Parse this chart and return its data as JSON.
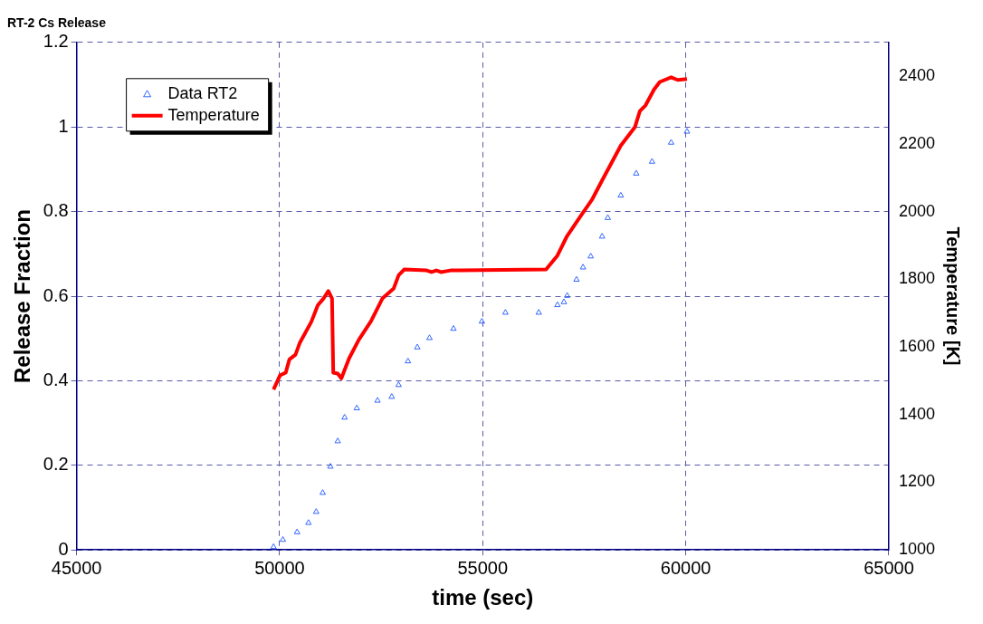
{
  "chart_data": {
    "type": "scatter",
    "title": "RT-2 Cs Release",
    "xlabel": "time (sec)",
    "ylabel": "Release Fraction",
    "y2label": "Temperature [K]",
    "xlim": [
      45000,
      65000
    ],
    "xticks": [
      45000,
      50000,
      55000,
      60000,
      65000
    ],
    "ylim": [
      0,
      1.2
    ],
    "yticks": [
      0,
      0.2,
      0.4,
      0.6,
      0.8,
      1,
      1.2
    ],
    "y2lim": [
      1000,
      2500
    ],
    "y2ticks": [
      1000,
      1200,
      1400,
      1600,
      1800,
      2000,
      2200,
      2400
    ],
    "grid": true,
    "legend": "top left",
    "series": [
      {
        "name": "Data RT2",
        "type": "scatter",
        "marker": "triangle",
        "color": "#3366ff",
        "x": [
          49850,
          50080,
          50430,
          50710,
          50900,
          51060,
          51250,
          51430,
          51600,
          51900,
          52410,
          52760,
          52930,
          53160,
          53390,
          53690,
          54280,
          54980,
          55560,
          56380,
          56840,
          57000,
          57080,
          57310,
          57470,
          57660,
          57940,
          58080,
          58400,
          58780,
          59170,
          59640,
          60030
        ],
        "values": [
          0.007,
          0.024,
          0.042,
          0.064,
          0.09,
          0.135,
          0.197,
          0.257,
          0.313,
          0.335,
          0.353,
          0.362,
          0.39,
          0.446,
          0.479,
          0.501,
          0.523,
          0.54,
          0.561,
          0.561,
          0.579,
          0.586,
          0.601,
          0.639,
          0.668,
          0.694,
          0.741,
          0.785,
          0.838,
          0.89,
          0.918,
          0.963,
          0.989
        ]
      },
      {
        "name": "Temperature",
        "type": "line",
        "axis": "y2",
        "marker": "none",
        "line_style": "solid",
        "color": "#ff0000",
        "x": [
          49850,
          50010,
          50150,
          50240,
          50390,
          50500,
          50780,
          50940,
          51080,
          51200,
          51290,
          51320,
          51430,
          51520,
          51710,
          51950,
          52250,
          52530,
          52810,
          52930,
          53070,
          53620,
          53740,
          53860,
          53970,
          54210,
          56560,
          56840,
          57070,
          57380,
          57700,
          57940,
          58400,
          58750,
          58870,
          59010,
          59220,
          59360,
          59640,
          59800,
          60030
        ],
        "values": [
          1474,
          1516,
          1524,
          1563,
          1577,
          1613,
          1674,
          1723,
          1743,
          1765,
          1743,
          1524,
          1521,
          1507,
          1566,
          1621,
          1676,
          1743,
          1773,
          1812,
          1829,
          1826,
          1821,
          1826,
          1821,
          1826,
          1829,
          1870,
          1926,
          1981,
          2037,
          2092,
          2195,
          2250,
          2297,
          2314,
          2361,
          2383,
          2397,
          2389,
          2392
        ]
      }
    ]
  }
}
